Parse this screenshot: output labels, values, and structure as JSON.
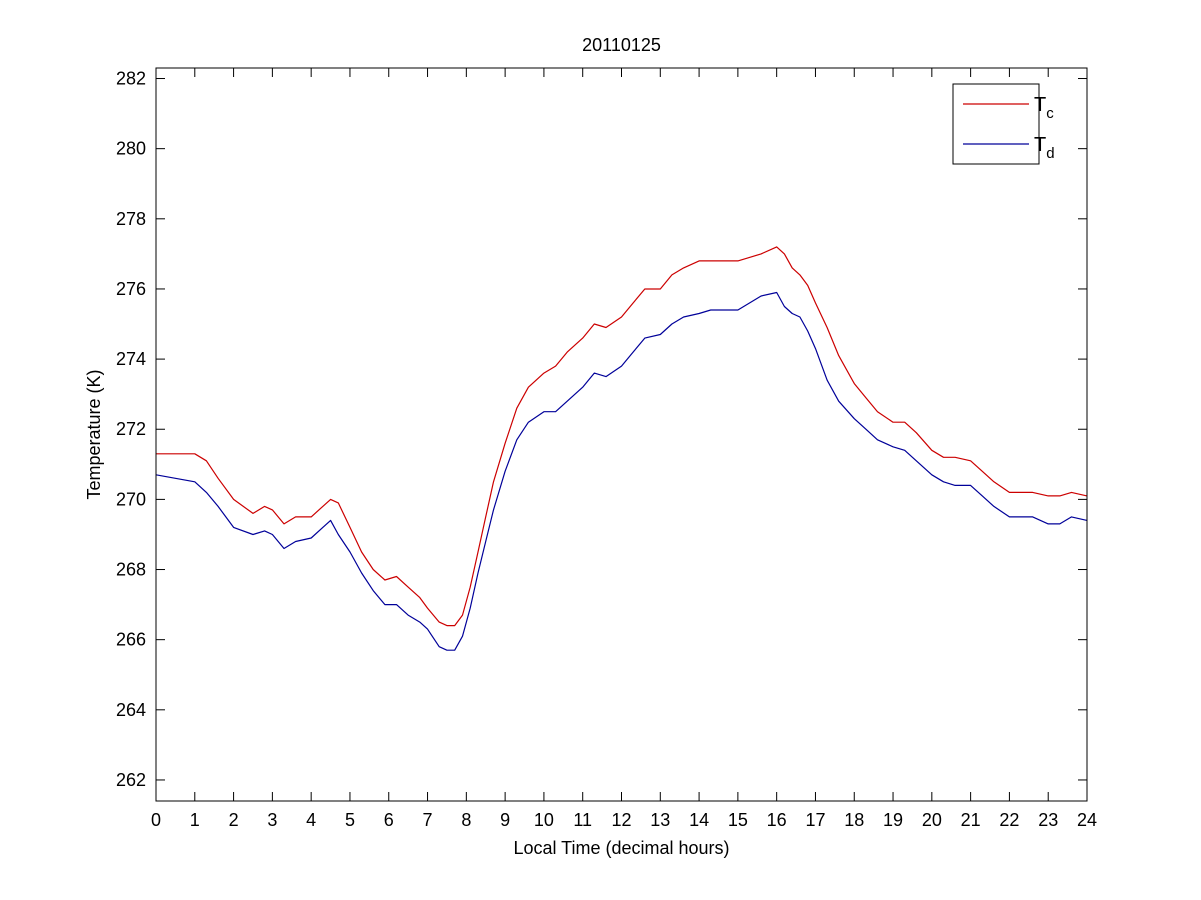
{
  "chart_data": {
    "type": "line",
    "title": "20110125",
    "xlabel": "Local Time (decimal hours)",
    "ylabel": "Temperature (K)",
    "xlim": [
      0,
      24
    ],
    "ylim": [
      261.4,
      282.3
    ],
    "xticks": [
      0,
      1,
      2,
      3,
      4,
      5,
      6,
      7,
      8,
      9,
      10,
      11,
      12,
      13,
      14,
      15,
      16,
      17,
      18,
      19,
      20,
      21,
      22,
      23,
      24
    ],
    "yticks": [
      262,
      264,
      266,
      268,
      270,
      272,
      274,
      276,
      278,
      280,
      282
    ],
    "grid": false,
    "legend_position": "top-right",
    "series": [
      {
        "name": "Tc",
        "name_main": "T",
        "name_sub": "c",
        "color": "#cc0000",
        "x": [
          0,
          0.5,
          1.0,
          1.3,
          1.6,
          2.0,
          2.5,
          2.8,
          3.0,
          3.3,
          3.6,
          4.0,
          4.3,
          4.5,
          4.7,
          5.0,
          5.3,
          5.6,
          5.9,
          6.2,
          6.5,
          6.8,
          7.0,
          7.3,
          7.5,
          7.7,
          7.9,
          8.1,
          8.3,
          8.5,
          8.7,
          9.0,
          9.3,
          9.6,
          10.0,
          10.3,
          10.6,
          11.0,
          11.3,
          11.6,
          12.0,
          12.3,
          12.6,
          13.0,
          13.3,
          13.6,
          14.0,
          14.3,
          14.6,
          15.0,
          15.3,
          15.6,
          16.0,
          16.2,
          16.4,
          16.6,
          16.8,
          17.0,
          17.3,
          17.6,
          18.0,
          18.3,
          18.6,
          19.0,
          19.3,
          19.6,
          20.0,
          20.3,
          20.6,
          21.0,
          21.3,
          21.6,
          22.0,
          22.3,
          22.6,
          23.0,
          23.3,
          23.6,
          24.0
        ],
        "y": [
          271.3,
          271.3,
          271.3,
          271.1,
          270.6,
          270.0,
          269.6,
          269.8,
          269.7,
          269.3,
          269.5,
          269.5,
          269.8,
          270.0,
          269.9,
          269.2,
          268.5,
          268.0,
          267.7,
          267.8,
          267.5,
          267.2,
          266.9,
          266.5,
          266.4,
          266.4,
          266.7,
          267.5,
          268.5,
          269.5,
          270.5,
          271.6,
          272.6,
          273.2,
          273.6,
          273.8,
          274.2,
          274.6,
          275.0,
          274.9,
          275.2,
          275.6,
          276.0,
          276.0,
          276.4,
          276.6,
          276.8,
          276.8,
          276.8,
          276.8,
          276.9,
          277.0,
          277.2,
          277.0,
          276.6,
          276.4,
          276.1,
          275.6,
          274.9,
          274.1,
          273.3,
          272.9,
          272.5,
          272.2,
          272.2,
          271.9,
          271.4,
          271.2,
          271.2,
          271.1,
          270.8,
          270.5,
          270.2,
          270.2,
          270.2,
          270.1,
          270.1,
          270.2,
          270.1
        ]
      },
      {
        "name": "Td",
        "name_main": "T",
        "name_sub": "d",
        "color": "#000099",
        "x": [
          0,
          0.5,
          1.0,
          1.3,
          1.6,
          2.0,
          2.5,
          2.8,
          3.0,
          3.3,
          3.6,
          4.0,
          4.3,
          4.5,
          4.7,
          5.0,
          5.3,
          5.6,
          5.9,
          6.2,
          6.5,
          6.8,
          7.0,
          7.3,
          7.5,
          7.7,
          7.9,
          8.1,
          8.3,
          8.5,
          8.7,
          9.0,
          9.3,
          9.6,
          10.0,
          10.3,
          10.6,
          11.0,
          11.3,
          11.6,
          12.0,
          12.3,
          12.6,
          13.0,
          13.3,
          13.6,
          14.0,
          14.3,
          14.6,
          15.0,
          15.3,
          15.6,
          16.0,
          16.2,
          16.4,
          16.6,
          16.8,
          17.0,
          17.3,
          17.6,
          18.0,
          18.3,
          18.6,
          19.0,
          19.3,
          19.6,
          20.0,
          20.3,
          20.6,
          21.0,
          21.3,
          21.6,
          22.0,
          22.3,
          22.6,
          23.0,
          23.3,
          23.6,
          24.0
        ],
        "y": [
          270.7,
          270.6,
          270.5,
          270.2,
          269.8,
          269.2,
          269.0,
          269.1,
          269.0,
          268.6,
          268.8,
          268.9,
          269.2,
          269.4,
          269.0,
          268.5,
          267.9,
          267.4,
          267.0,
          267.0,
          266.7,
          266.5,
          266.3,
          265.8,
          265.7,
          265.7,
          266.1,
          266.9,
          267.9,
          268.8,
          269.7,
          270.8,
          271.7,
          272.2,
          272.5,
          272.5,
          272.8,
          273.2,
          273.6,
          273.5,
          273.8,
          274.2,
          274.6,
          274.7,
          275.0,
          275.2,
          275.3,
          275.4,
          275.4,
          275.4,
          275.6,
          275.8,
          275.9,
          275.5,
          275.3,
          275.2,
          274.8,
          274.3,
          273.4,
          272.8,
          272.3,
          272.0,
          271.7,
          271.5,
          271.4,
          271.1,
          270.7,
          270.5,
          270.4,
          270.4,
          270.1,
          269.8,
          269.5,
          269.5,
          269.5,
          269.3,
          269.3,
          269.5,
          269.4
        ]
      }
    ]
  }
}
